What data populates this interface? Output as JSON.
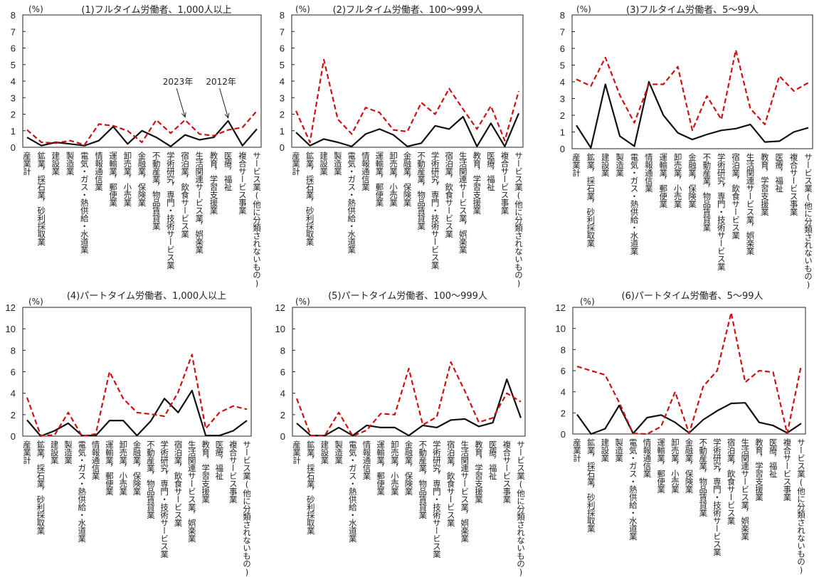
{
  "chart_data": [
    {
      "type": "line",
      "title": "(1)フルタイム労働者、1,000人以上",
      "unit": "(%)",
      "ylim": [
        0,
        8
      ],
      "yticks": [
        0,
        1,
        2,
        3,
        4,
        5,
        6,
        7,
        8
      ],
      "categories": [
        "産業計",
        "鉱業，採石業，砂利採取業",
        "建設業",
        "製造業",
        "電気・ガス・熱供給・水道業",
        "情報通信業",
        "運輸業，郵便業",
        "卸売業，小売業",
        "金融業，保険業",
        "不動産業，物品賃貸業",
        "学術研究，専門・技術サービス業",
        "宿泊業，飲食サービス業",
        "生活関連サービス業，娯楽業",
        "教育，学習支援業",
        "医療，福祉",
        "複合サービス事業",
        "サービス業(他に分類されないもの)"
      ],
      "series": [
        {
          "name": "2023年",
          "color": "#cc1111",
          "dash": true,
          "values": [
            1.05,
            0.3,
            0.25,
            0.4,
            0.15,
            1.4,
            1.3,
            1.0,
            0.3,
            1.65,
            0.85,
            1.65,
            0.8,
            0.7,
            1.05,
            1.2,
            2.2
          ]
        },
        {
          "name": "2012年",
          "color": "#111111",
          "dash": false,
          "values": [
            0.6,
            0.1,
            0.3,
            0.2,
            0.1,
            0.4,
            1.25,
            0.2,
            1.0,
            0.6,
            0.05,
            0.75,
            0.45,
            0.6,
            1.6,
            0.1,
            1.1
          ]
        }
      ],
      "annotations": [
        {
          "text": "2023年",
          "target_series": 0,
          "target_index": 11
        },
        {
          "text": "2012年",
          "target_series": 1,
          "target_index": 14
        }
      ]
    },
    {
      "type": "line",
      "title": "(2)フルタイム労働者、100～999人",
      "unit": "(%)",
      "ylim": [
        0,
        8
      ],
      "yticks": [
        0,
        1,
        2,
        3,
        4,
        5,
        6,
        7,
        8
      ],
      "categories": [
        "産業計",
        "鉱業，採石業，砂利採取業",
        "建設業",
        "製造業",
        "電気・ガス・熱供給・水道業",
        "情報通信業",
        "運輸業，郵便業",
        "卸売業，小売業",
        "金融業，保険業",
        "不動産業，物品賃貸業",
        "学術研究，専門・技術サービス業",
        "宿泊業，飲食サービス業",
        "生活関連サービス業，娯楽業",
        "教育，学習支援業",
        "医療，福祉",
        "複合サービス事業",
        "サービス業(他に分類されないもの)"
      ],
      "series": [
        {
          "color": "#cc1111",
          "dash": true,
          "values": [
            2.2,
            0.3,
            5.3,
            1.7,
            0.8,
            2.4,
            2.1,
            1.05,
            0.95,
            2.7,
            2.0,
            3.55,
            2.3,
            1.1,
            2.5,
            0.4,
            3.4
          ]
        },
        {
          "color": "#111111",
          "dash": false,
          "values": [
            0.9,
            0.1,
            0.5,
            0.3,
            0.05,
            0.8,
            1.1,
            0.75,
            0.05,
            0.25,
            1.3,
            1.1,
            1.85,
            0.05,
            1.45,
            0.05,
            2.05
          ]
        }
      ]
    },
    {
      "type": "line",
      "title": "(3)フルタイム労働者、5～99人",
      "unit": "(%)",
      "ylim": [
        0,
        8
      ],
      "yticks": [
        0,
        1,
        2,
        3,
        4,
        5,
        6,
        7,
        8
      ],
      "categories": [
        "産業計",
        "鉱業，採石業，砂利採取業",
        "建設業",
        "製造業",
        "電気・ガス・熱供給・水道業",
        "情報通信業",
        "運輸業，郵便業",
        "卸売業，小売業",
        "金融業，保険業",
        "不動産業，物品賃貸業",
        "学術研究，専門・技術サービス業",
        "宿泊業，飲食サービス業",
        "生活関連サービス業，娯楽業",
        "教育，学習支援業",
        "医療，福祉",
        "複合サービス事業",
        "サービス業(他に分類されないもの)"
      ],
      "series": [
        {
          "color": "#cc1111",
          "dash": true,
          "values": [
            4.15,
            3.75,
            5.45,
            3.2,
            1.55,
            3.85,
            3.85,
            4.9,
            1.1,
            3.15,
            1.75,
            5.9,
            2.4,
            1.45,
            4.35,
            3.45,
            3.95
          ]
        },
        {
          "color": "#111111",
          "dash": false,
          "values": [
            1.4,
            0.05,
            3.85,
            0.75,
            0.15,
            4.0,
            2.0,
            0.95,
            0.55,
            0.85,
            1.1,
            1.2,
            1.45,
            0.4,
            0.45,
            1.0,
            1.25
          ]
        }
      ]
    },
    {
      "type": "line",
      "title": "(4)パートタイム労働者、1,000人以上",
      "unit": "(%)",
      "ylim": [
        0,
        12
      ],
      "yticks": [
        0,
        2,
        4,
        6,
        8,
        10,
        12
      ],
      "categories": [
        "産業計",
        "鉱業，採石業，砂利採取業",
        "建設業",
        "製造業",
        "電気・ガス・熱供給・水道業",
        "情報通信業",
        "運輸業，郵便業",
        "卸売業，小売業",
        "金融業，保険業",
        "不動産業，物品賃貸業",
        "学術研究，専門・技術サービス業",
        "宿泊業，飲食サービス業",
        "生活関連サービス業，娯楽業",
        "教育，学習支援業",
        "医療，福祉",
        "複合サービス事業",
        "サービス業(他に分類されないもの)"
      ],
      "series": [
        {
          "color": "#cc1111",
          "dash": true,
          "values": [
            3.6,
            0.05,
            0.1,
            2.2,
            0.0,
            0.2,
            6.0,
            3.5,
            2.2,
            2.05,
            1.85,
            4.1,
            7.6,
            0.7,
            2.2,
            2.8,
            2.5
          ]
        },
        {
          "color": "#111111",
          "dash": false,
          "values": [
            1.5,
            0.0,
            0.5,
            1.2,
            0.05,
            0.05,
            1.45,
            1.45,
            0.05,
            1.4,
            3.5,
            2.2,
            4.25,
            0.05,
            0.05,
            0.5,
            1.45
          ]
        }
      ]
    },
    {
      "type": "line",
      "title": "(5)パートタイム労働者、100～999人",
      "unit": "(%)",
      "ylim": [
        0,
        12
      ],
      "yticks": [
        0,
        2,
        4,
        6,
        8,
        10,
        12
      ],
      "categories": [
        "産業計",
        "鉱業，採石業，砂利採取業",
        "建設業",
        "製造業",
        "電気・ガス・熱供給・水道業",
        "情報通信業",
        "運輸業，郵便業",
        "卸売業，小売業",
        "金融業，保険業",
        "不動産業，物品賃貸業",
        "学術研究，専門・技術サービス業",
        "宿泊業，飲食サービス業",
        "生活関連サービス業，娯楽業",
        "教育，学習支援業",
        "医療，福祉",
        "複合サービス事業",
        "サービス業(他に分類されないもの)"
      ],
      "series": [
        {
          "color": "#cc1111",
          "dash": true,
          "values": [
            3.5,
            0.05,
            0.05,
            2.2,
            0.0,
            0.55,
            2.1,
            2.0,
            6.3,
            1.05,
            1.8,
            6.9,
            4.2,
            1.3,
            1.7,
            4.0,
            3.2
          ]
        },
        {
          "color": "#111111",
          "dash": false,
          "values": [
            1.2,
            0.05,
            0.05,
            0.8,
            0.05,
            1.0,
            0.8,
            0.8,
            0.05,
            1.0,
            0.8,
            1.5,
            1.6,
            0.9,
            1.25,
            5.3,
            1.7
          ]
        }
      ]
    },
    {
      "type": "line",
      "title": "(6)パートタイム労働者、5～99人",
      "unit": "(%)",
      "ylim": [
        0,
        12
      ],
      "yticks": [
        0,
        2,
        4,
        6,
        8,
        10,
        12
      ],
      "categories": [
        "産業計",
        "鉱業，採石業，砂利採取業",
        "建設業",
        "製造業",
        "電気・ガス・熱供給・水道業",
        "情報通信業",
        "運輸業，郵便業",
        "卸売業，小売業",
        "金融業，保険業",
        "不動産業，物品賃貸業",
        "学術研究，専門・技術サービス業",
        "宿泊業，飲食サービス業",
        "生活関連サービス業，娯楽業",
        "教育，学習支援業",
        "医療，福祉",
        "複合サービス事業",
        "サービス業(他に分類されないもの)"
      ],
      "series": [
        {
          "color": "#cc1111",
          "dash": true,
          "values": [
            6.4,
            6.0,
            5.6,
            3.0,
            0.05,
            0.0,
            0.7,
            4.0,
            0.05,
            4.5,
            6.0,
            11.5,
            4.9,
            6.0,
            5.85,
            0.05,
            6.5
          ]
        },
        {
          "color": "#111111",
          "dash": false,
          "values": [
            1.85,
            0.0,
            0.5,
            2.7,
            0.05,
            1.55,
            1.8,
            1.1,
            0.1,
            1.35,
            2.2,
            2.9,
            2.95,
            1.1,
            0.8,
            0.1,
            1.0
          ]
        }
      ]
    }
  ]
}
